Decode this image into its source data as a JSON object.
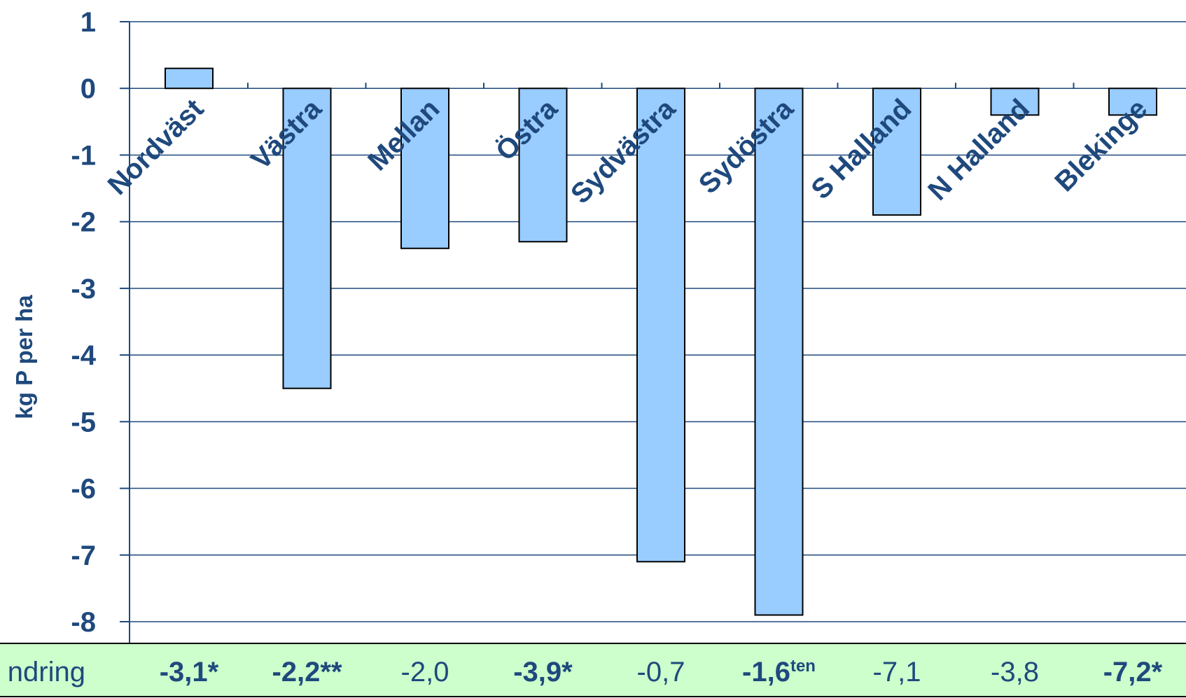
{
  "chart_data": {
    "type": "bar",
    "categories": [
      "Nordväst",
      "Västra",
      "Mellan",
      "Östra",
      "Sydvästra",
      "Sydöstra",
      "S Halland",
      "N Halland",
      "Blekinge"
    ],
    "values": [
      0.3,
      -4.5,
      -2.4,
      -2.3,
      -7.1,
      -7.9,
      -1.9,
      -0.4,
      -0.4
    ],
    "ylabel": "kg P per ha",
    "ylim": [
      -8,
      1
    ],
    "yticks": [
      "1",
      "0",
      "-1",
      "-2",
      "-3",
      "-4",
      "-5",
      "-6",
      "-7",
      "-8"
    ],
    "grid": true,
    "colors": {
      "bar": "#99ccff",
      "text": "#1f497d",
      "band": "#ccffcc"
    }
  },
  "band": {
    "label": "ndring",
    "values": [
      {
        "text": "-3,1",
        "suffix": "*",
        "bold": true
      },
      {
        "text": "-2,2",
        "suffix": "**",
        "bold": true
      },
      {
        "text": "-2,0",
        "suffix": "",
        "bold": false
      },
      {
        "text": "-3,9",
        "suffix": "*",
        "bold": true
      },
      {
        "text": "-0,7",
        "suffix": "",
        "bold": false
      },
      {
        "text": "-1,6",
        "suffix": "ten",
        "bold": true
      },
      {
        "text": "-7,1",
        "suffix": "",
        "bold": false
      },
      {
        "text": "-3,8",
        "suffix": "",
        "bold": false
      },
      {
        "text": "-7,2",
        "suffix": "*",
        "bold": true
      }
    ]
  }
}
